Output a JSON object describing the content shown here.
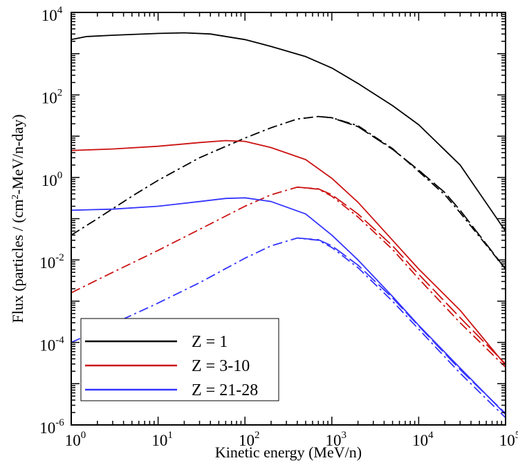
{
  "chart_data": {
    "type": "line",
    "title": "",
    "xlabel": "Kinetic energy (MeV/n)",
    "ylabel_parts": [
      "Flux (particles / (cm",
      "2",
      "-MeV/n-day)"
    ],
    "xscale": "log",
    "yscale": "log",
    "xlim": [
      1,
      100000
    ],
    "ylim": [
      1e-06,
      10000
    ],
    "grid": false,
    "legend_position": "bottom-left",
    "x_ticks": [
      {
        "base": "10",
        "exp": "0",
        "value": 1
      },
      {
        "base": "10",
        "exp": "1",
        "value": 10
      },
      {
        "base": "10",
        "exp": "2",
        "value": 100
      },
      {
        "base": "10",
        "exp": "3",
        "value": 1000
      },
      {
        "base": "10",
        "exp": "4",
        "value": 10000
      },
      {
        "base": "10",
        "exp": "5",
        "value": 100000
      }
    ],
    "y_ticks": [
      {
        "base": "10",
        "exp": "-6",
        "value": 1e-06
      },
      {
        "base": "10",
        "exp": "-4",
        "value": 0.0001
      },
      {
        "base": "10",
        "exp": "-2",
        "value": 0.01
      },
      {
        "base": "10",
        "exp": "0",
        "value": 1
      },
      {
        "base": "10",
        "exp": "2",
        "value": 100
      },
      {
        "base": "10",
        "exp": "4",
        "value": 10000
      }
    ],
    "legend": [
      {
        "label": "Z = 1",
        "color": "#000000"
      },
      {
        "label": "Z = 3-10",
        "color": "#cc1111"
      },
      {
        "label": "Z = 21-28",
        "color": "#3333ff"
      }
    ],
    "series": [
      {
        "group": 0,
        "style": "solid",
        "color": "#000000",
        "x": [
          1,
          1.5,
          3,
          10,
          20,
          40,
          100,
          200,
          500,
          1000,
          2000,
          5000,
          10000,
          30000,
          100000
        ],
        "y": [
          2200,
          2600,
          2800,
          3100,
          3200,
          3000,
          2200,
          1500,
          850,
          450,
          190,
          55,
          19,
          2,
          0.05
        ]
      },
      {
        "group": 0,
        "style": "dashdot",
        "color": "#000000",
        "x": [
          1,
          2,
          5,
          10,
          30,
          100,
          200,
          400,
          700,
          1000,
          2000,
          5000,
          10000,
          20000,
          30000,
          100000
        ],
        "y": [
          0.04,
          0.1,
          0.35,
          0.85,
          3,
          9,
          16,
          26,
          30,
          28,
          18,
          5,
          1.4,
          0.38,
          0.14,
          0.006
        ]
      },
      {
        "group": 0,
        "style": "dashed",
        "color": "#000000",
        "x": [
          700,
          1000,
          2000,
          5000,
          10000,
          20000,
          30000,
          100000
        ],
        "y": [
          30,
          28,
          17,
          4.8,
          1.5,
          0.43,
          0.16,
          0.006
        ]
      },
      {
        "group": 1,
        "style": "solid",
        "color": "#cc1111",
        "x": [
          1,
          3,
          10,
          30,
          60,
          100,
          200,
          500,
          1000,
          2000,
          5000,
          10000,
          30000,
          100000
        ],
        "y": [
          4.5,
          4.9,
          5.7,
          7,
          7.8,
          7.5,
          5.3,
          2.7,
          0.95,
          0.25,
          0.03,
          0.006,
          0.0006,
          2.8e-05
        ]
      },
      {
        "group": 1,
        "style": "dashdot",
        "color": "#cc1111",
        "x": [
          1,
          3,
          10,
          30,
          100,
          200,
          400,
          700,
          1000,
          2000,
          5000,
          10000,
          30000,
          100000
        ],
        "y": [
          0.0016,
          0.005,
          0.017,
          0.055,
          0.2,
          0.38,
          0.58,
          0.52,
          0.35,
          0.11,
          0.018,
          0.0035,
          0.0003,
          2.5e-05
        ]
      },
      {
        "group": 1,
        "style": "dashed",
        "color": "#cc1111",
        "x": [
          400,
          700,
          1000,
          2000,
          5000,
          10000,
          30000,
          100000
        ],
        "y": [
          0.58,
          0.53,
          0.38,
          0.13,
          0.022,
          0.0045,
          0.0004,
          3e-05
        ]
      },
      {
        "group": 2,
        "style": "solid",
        "color": "#3333ff",
        "x": [
          1,
          3,
          10,
          30,
          60,
          100,
          200,
          500,
          1000,
          2000,
          5000,
          10000,
          30000,
          100000
        ],
        "y": [
          0.16,
          0.17,
          0.2,
          0.26,
          0.31,
          0.32,
          0.26,
          0.13,
          0.04,
          0.01,
          0.0013,
          0.00026,
          2.4e-05,
          1.8e-06
        ]
      },
      {
        "group": 2,
        "style": "dashdot",
        "color": "#3333ff",
        "x": [
          1,
          3,
          10,
          30,
          100,
          200,
          400,
          700,
          1000,
          2000,
          5000,
          10000,
          30000,
          100000
        ],
        "y": [
          0.0001,
          0.00028,
          0.0009,
          0.0028,
          0.011,
          0.022,
          0.034,
          0.03,
          0.02,
          0.0065,
          0.001,
          0.00021,
          1.8e-05,
          1.5e-06
        ]
      },
      {
        "group": 2,
        "style": "dashed",
        "color": "#3333ff",
        "x": [
          400,
          700,
          1000,
          2000,
          5000,
          10000,
          30000,
          100000
        ],
        "y": [
          0.034,
          0.031,
          0.022,
          0.0075,
          0.0012,
          0.00025,
          2.2e-05,
          1.9e-06
        ]
      }
    ]
  }
}
